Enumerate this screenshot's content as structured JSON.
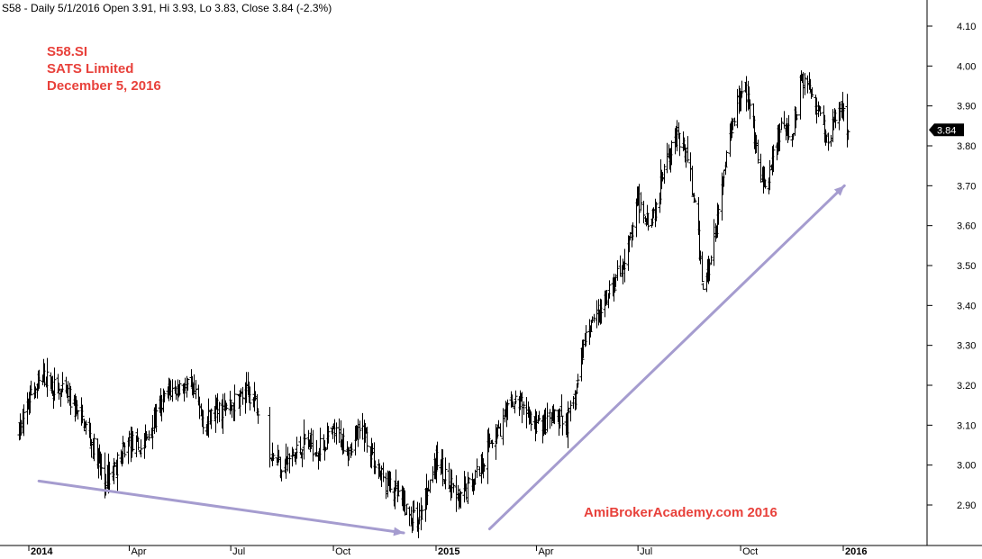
{
  "header": {
    "text": "S58 - Daily 5/1/2016 Open 3.91, Hi 3.93, Lo 3.83, Close 3.84 (-2.3%)"
  },
  "annotations": {
    "symbol": "S58.SI",
    "company": "SATS Limited",
    "date": "December 5, 2016",
    "watermark": "AmiBrokerAcademy.com  2016"
  },
  "colors": {
    "price": "#000000",
    "trend_arrow": "#a59ccf",
    "annotation": "#e8413b",
    "last_badge_bg": "#000000"
  },
  "chart_data": {
    "type": "ohlc",
    "title": "",
    "xlabel": "",
    "ylabel": "",
    "ylim": [
      2.8,
      4.12
    ],
    "yticks": [
      2.9,
      3.0,
      3.1,
      3.2,
      3.3,
      3.4,
      3.5,
      3.6,
      3.7,
      3.8,
      3.9,
      4.0,
      4.1
    ],
    "ytick_labels": [
      "2.90",
      "3.00",
      "3.10",
      "3.20",
      "3.30",
      "3.40",
      "3.50",
      "3.60",
      "3.70",
      "3.80",
      "3.90",
      "4.00",
      "4.10"
    ],
    "xlim": [
      "2014-01-01",
      "2016-04-01"
    ],
    "xticks": [
      {
        "date": "2014-01-01",
        "label": "2014",
        "major": true
      },
      {
        "date": "2014-04-01",
        "label": "Apr",
        "major": false
      },
      {
        "date": "2014-07-01",
        "label": "Jul",
        "major": false
      },
      {
        "date": "2014-10-01",
        "label": "Oct",
        "major": false
      },
      {
        "date": "2015-01-01",
        "label": "2015",
        "major": true
      },
      {
        "date": "2015-04-01",
        "label": "Apr",
        "major": false
      },
      {
        "date": "2015-07-01",
        "label": "Jul",
        "major": false
      },
      {
        "date": "2015-10-01",
        "label": "Oct",
        "major": false
      },
      {
        "date": "2016-01-01",
        "label": "2016",
        "major": true
      }
    ],
    "last_close": 3.84,
    "last_close_label": "3.84",
    "price_path": [
      [
        "2013-12-23",
        3.08
      ],
      [
        "2014-01-03",
        3.18
      ],
      [
        "2014-01-15",
        3.22
      ],
      [
        "2014-01-25",
        3.19
      ],
      [
        "2014-02-05",
        3.17
      ],
      [
        "2014-02-20",
        3.1
      ],
      [
        "2014-03-03",
        3.02
      ],
      [
        "2014-03-10",
        2.96
      ],
      [
        "2014-03-20",
        3.0
      ],
      [
        "2014-04-01",
        3.06
      ],
      [
        "2014-04-12",
        3.04
      ],
      [
        "2014-04-25",
        3.12
      ],
      [
        "2014-05-05",
        3.18
      ],
      [
        "2014-05-18",
        3.2
      ],
      [
        "2014-05-28",
        3.18
      ],
      [
        "2014-06-08",
        3.1
      ],
      [
        "2014-06-18",
        3.14
      ],
      [
        "2014-06-28",
        3.14
      ],
      [
        "2014-07-08",
        3.17
      ],
      [
        "2014-07-18",
        3.18
      ],
      [
        "2014-07-25",
        3.15
      ],
      [
        "2014-08-05",
        3.04
      ],
      [
        "2014-08-15",
        3.0
      ],
      [
        "2014-08-25",
        3.02
      ],
      [
        "2014-09-05",
        3.06
      ],
      [
        "2014-09-18",
        3.04
      ],
      [
        "2014-10-01",
        3.08
      ],
      [
        "2014-10-15",
        3.05
      ],
      [
        "2014-10-28",
        3.09
      ],
      [
        "2014-11-05",
        3.02
      ],
      [
        "2014-11-15",
        2.96
      ],
      [
        "2014-11-28",
        2.92
      ],
      [
        "2014-12-08",
        2.87
      ],
      [
        "2014-12-16",
        2.86
      ],
      [
        "2014-12-25",
        2.96
      ],
      [
        "2015-01-03",
        3.02
      ],
      [
        "2015-01-12",
        2.95
      ],
      [
        "2015-01-22",
        2.91
      ],
      [
        "2015-02-01",
        2.96
      ],
      [
        "2015-02-10",
        3.0
      ],
      [
        "2015-02-20",
        3.07
      ],
      [
        "2015-03-01",
        3.1
      ],
      [
        "2015-03-10",
        3.16
      ],
      [
        "2015-03-20",
        3.15
      ],
      [
        "2015-03-30",
        3.1
      ],
      [
        "2015-04-08",
        3.1
      ],
      [
        "2015-04-18",
        3.12
      ],
      [
        "2015-04-28",
        3.1
      ],
      [
        "2015-05-06",
        3.18
      ],
      [
        "2015-05-14",
        3.32
      ],
      [
        "2015-05-22",
        3.38
      ],
      [
        "2015-06-01",
        3.4
      ],
      [
        "2015-06-10",
        3.46
      ],
      [
        "2015-06-20",
        3.52
      ],
      [
        "2015-07-01",
        3.66
      ],
      [
        "2015-07-10",
        3.62
      ],
      [
        "2015-07-18",
        3.65
      ],
      [
        "2015-07-25",
        3.78
      ],
      [
        "2015-08-05",
        3.82
      ],
      [
        "2015-08-15",
        3.76
      ],
      [
        "2015-08-22",
        3.62
      ],
      [
        "2015-08-28",
        3.45
      ],
      [
        "2015-09-03",
        3.5
      ],
      [
        "2015-09-10",
        3.62
      ],
      [
        "2015-09-18",
        3.78
      ],
      [
        "2015-09-26",
        3.9
      ],
      [
        "2015-10-03",
        3.96
      ],
      [
        "2015-10-10",
        3.88
      ],
      [
        "2015-10-18",
        3.72
      ],
      [
        "2015-10-25",
        3.68
      ],
      [
        "2015-11-01",
        3.82
      ],
      [
        "2015-11-08",
        3.84
      ],
      [
        "2015-11-16",
        3.82
      ],
      [
        "2015-11-24",
        3.98
      ],
      [
        "2015-12-02",
        3.94
      ],
      [
        "2015-12-10",
        3.9
      ],
      [
        "2015-12-18",
        3.8
      ],
      [
        "2015-12-25",
        3.88
      ],
      [
        "2016-01-02",
        3.9
      ],
      [
        "2016-01-05",
        3.84
      ]
    ],
    "gaps": [
      [
        "2014-07-25",
        "2014-08-05"
      ]
    ],
    "trend_lines": [
      {
        "from": [
          "2014-01-10",
          2.96
        ],
        "to": [
          "2014-12-03",
          2.83
        ]
      },
      {
        "from": [
          "2015-02-18",
          2.84
        ],
        "to": [
          "2016-01-02",
          3.7
        ]
      }
    ]
  }
}
